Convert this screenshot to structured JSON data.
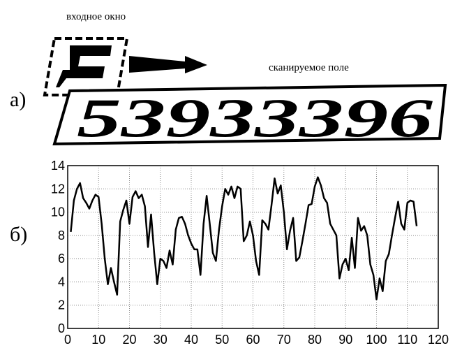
{
  "figure": {
    "part_a_label": "а)",
    "input_window_label": "входное окно",
    "scan_field_label": "сканируемое поле",
    "plate_text": "53933396",
    "part_b_label": "б)"
  },
  "chart_data": {
    "type": "line",
    "x": [
      1,
      2,
      3,
      4,
      5,
      6,
      7,
      8,
      9,
      10,
      11,
      12,
      13,
      14,
      15,
      16,
      17,
      18,
      19,
      20,
      21,
      22,
      23,
      24,
      25,
      26,
      27,
      28,
      29,
      30,
      31,
      32,
      33,
      34,
      35,
      36,
      37,
      38,
      39,
      40,
      41,
      42,
      43,
      44,
      45,
      46,
      47,
      48,
      49,
      50,
      51,
      52,
      53,
      54,
      55,
      56,
      57,
      58,
      59,
      60,
      61,
      62,
      63,
      64,
      65,
      66,
      67,
      68,
      69,
      70,
      71,
      72,
      73,
      74,
      75,
      76,
      77,
      78,
      79,
      80,
      81,
      82,
      83,
      84,
      85,
      86,
      87,
      88,
      89,
      90,
      91,
      92,
      93,
      94,
      95,
      96,
      97,
      98,
      99,
      100,
      101,
      102,
      103,
      104,
      105,
      106,
      107,
      108,
      109,
      110,
      111,
      112,
      113
    ],
    "series": [
      {
        "color": "#000000",
        "values": [
          8.3,
          11,
          12,
          12.5,
          11.2,
          10.8,
          10.3,
          11,
          11.5,
          11.3,
          9,
          6,
          3.8,
          5.2,
          4,
          2.9,
          9.2,
          10.2,
          11,
          9,
          11.3,
          11.8,
          11.2,
          11.5,
          10.5,
          7,
          9.8,
          6.5,
          3.8,
          6,
          5.8,
          5.2,
          6.7,
          5.5,
          8.5,
          9.5,
          9.6,
          9,
          8,
          7.3,
          6.8,
          6.8,
          4.6,
          9,
          11.4,
          9,
          6.5,
          5.8,
          8.5,
          10.5,
          12,
          11.5,
          12.2,
          11.2,
          12.2,
          12,
          7.5,
          8,
          9.2,
          8,
          5.8,
          4.6,
          9.3,
          9,
          8.5,
          10.6,
          12.9,
          11.6,
          12.3,
          10,
          6.8,
          8.4,
          9.5,
          5.8,
          6.1,
          7.5,
          9,
          10.6,
          10.7,
          12.2,
          13,
          12.3,
          11.2,
          10.8,
          9,
          8.5,
          8,
          4.3,
          5.5,
          6,
          5,
          7.8,
          5.2,
          9.5,
          8.4,
          8.8,
          8,
          5.5,
          4.6,
          2.5,
          4.3,
          3.2,
          5.8,
          6.4,
          8,
          9.5,
          10.9,
          9,
          8.5,
          10.8,
          11,
          10.9,
          8.8
        ]
      }
    ],
    "xlim": [
      0,
      120
    ],
    "ylim": [
      0,
      14
    ],
    "xticks": [
      0,
      10,
      20,
      30,
      40,
      50,
      60,
      70,
      80,
      90,
      100,
      110,
      120
    ],
    "yticks": [
      0,
      2,
      4,
      6,
      8,
      10,
      12,
      14
    ],
    "grid": true
  }
}
